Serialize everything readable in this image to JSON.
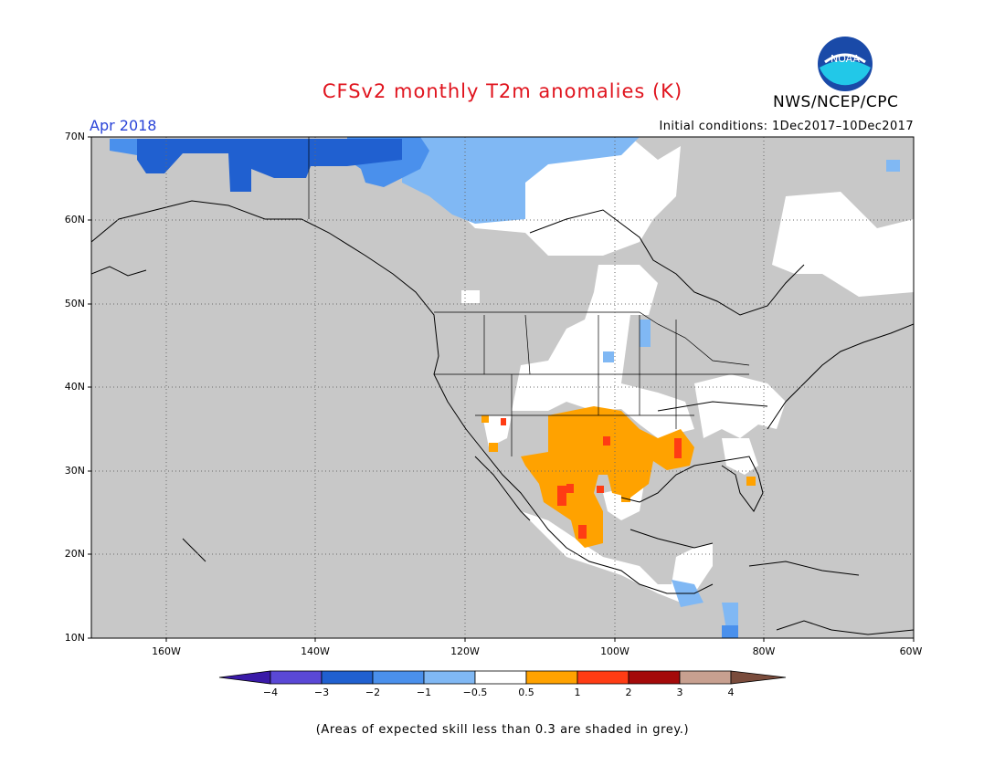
{
  "header": {
    "title": "CFSv2 monthly T2m anomalies (K)",
    "agency": "NWS/NCEP/CPC",
    "logo_text": "NOAA",
    "valid_month": "Apr 2018",
    "initial_conditions": "Initial conditions: 1Dec2017–10Dec2017"
  },
  "map": {
    "lat_labels": [
      "70N",
      "60N",
      "50N",
      "40N",
      "30N",
      "20N",
      "10N"
    ],
    "lon_labels": [
      "160W",
      "140W",
      "120W",
      "100W",
      "80W",
      "60W"
    ],
    "colors": {
      "background_grey": "#c8c8c8",
      "ocean_line": "#000000",
      "grid": "#888888"
    }
  },
  "colorbar": {
    "labels": [
      "−4",
      "−3",
      "−2",
      "−1",
      "−0.5",
      "0.5",
      "1",
      "2",
      "3",
      "4"
    ],
    "colors": [
      "#3a1aa8",
      "#5a48d6",
      "#2060d0",
      "#4a90ec",
      "#80b8f4",
      "#ffffff",
      "#ffa200",
      "#ff3c14",
      "#a40a0a",
      "#c8a090",
      "#7a4c3c"
    ]
  },
  "footer": {
    "note": "(Areas of expected skill less than 0.3 are shaded in grey.)"
  }
}
